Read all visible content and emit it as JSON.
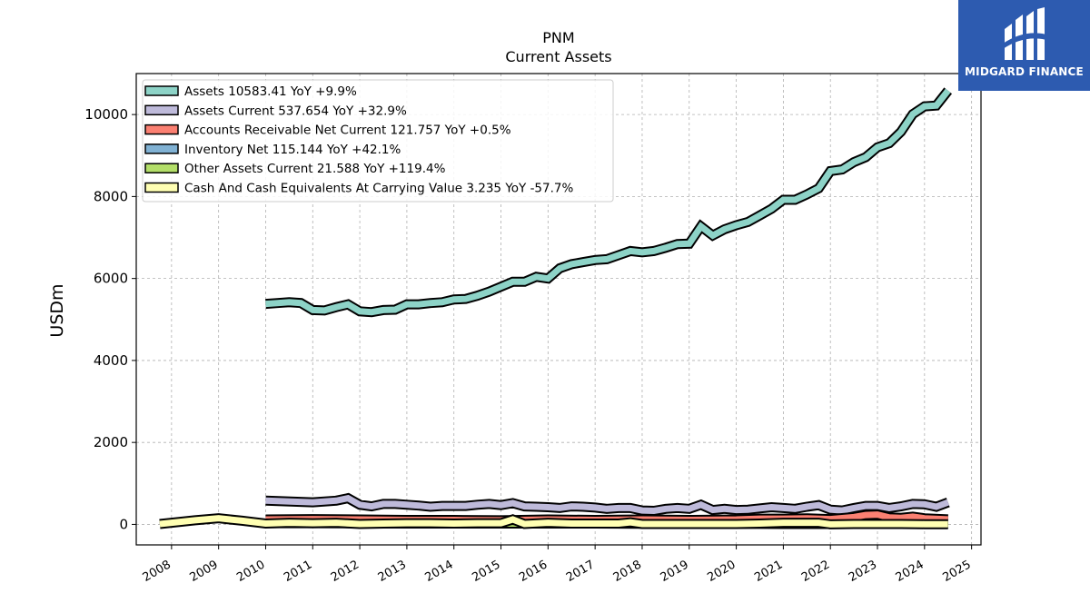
{
  "logo": {
    "text": "MIDGARD FINANCE",
    "icon": "midgard-logo-icon",
    "background": "#2d5bb0"
  },
  "chart_data": {
    "type": "area",
    "title": "PNM",
    "subtitle": "Current  Assets",
    "xlabel": "",
    "ylabel": "USDm",
    "xlim": [
      2007.25,
      2025.2
    ],
    "ylim": [
      -500,
      11000
    ],
    "x_ticks": [
      "2008",
      "2009",
      "2010",
      "2011",
      "2012",
      "2013",
      "2014",
      "2015",
      "2016",
      "2017",
      "2018",
      "2019",
      "2020",
      "2021",
      "2022",
      "2023",
      "2024",
      "2025"
    ],
    "y_ticks": [
      0,
      2000,
      4000,
      6000,
      8000,
      10000
    ],
    "grid": true,
    "legend_position": "top-left",
    "series": [
      {
        "name": "Assets  10583.41 YoY +9.9%",
        "color": "#8dd3c7",
        "x": [
          2010.0,
          2010.25,
          2010.5,
          2010.75,
          2011.0,
          2011.25,
          2011.5,
          2011.75,
          2012.0,
          2012.25,
          2012.5,
          2012.75,
          2013.0,
          2013.25,
          2013.5,
          2013.75,
          2014.0,
          2014.25,
          2014.5,
          2014.75,
          2015.0,
          2015.25,
          2015.5,
          2015.75,
          2016.0,
          2016.25,
          2016.5,
          2016.75,
          2017.0,
          2017.25,
          2017.5,
          2017.75,
          2018.0,
          2018.25,
          2018.5,
          2018.75,
          2019.0,
          2019.25,
          2019.5,
          2019.75,
          2020.0,
          2020.25,
          2020.5,
          2020.75,
          2021.0,
          2021.25,
          2021.5,
          2021.75,
          2022.0,
          2022.25,
          2022.5,
          2022.75,
          2023.0,
          2023.25,
          2023.5,
          2023.75,
          2024.0,
          2024.25,
          2024.5
        ],
        "values": [
          5380,
          5400,
          5420,
          5400,
          5230,
          5220,
          5300,
          5370,
          5200,
          5180,
          5230,
          5240,
          5370,
          5370,
          5400,
          5420,
          5490,
          5500,
          5580,
          5680,
          5800,
          5920,
          5920,
          6040,
          6000,
          6250,
          6350,
          6400,
          6450,
          6470,
          6570,
          6670,
          6640,
          6670,
          6750,
          6840,
          6850,
          7270,
          7050,
          7200,
          7300,
          7380,
          7540,
          7700,
          7920,
          7920,
          8050,
          8200,
          8620,
          8660,
          8840,
          8960,
          9200,
          9300,
          9580,
          10010,
          10200,
          10220,
          10583
        ]
      },
      {
        "name": "Assets Current  537.654 YoY +32.9%",
        "color": "#bebada",
        "x": [
          2010.0,
          2011.0,
          2011.5,
          2011.75,
          2012.0,
          2012.25,
          2012.5,
          2012.75,
          2013.0,
          2013.25,
          2013.5,
          2013.75,
          2014.0,
          2014.25,
          2014.5,
          2014.75,
          2015.0,
          2015.25,
          2015.5,
          2015.75,
          2016.0,
          2016.25,
          2016.5,
          2016.75,
          2017.0,
          2017.25,
          2017.5,
          2017.75,
          2018.0,
          2018.25,
          2018.5,
          2018.75,
          2019.0,
          2019.25,
          2019.5,
          2019.75,
          2020.0,
          2020.25,
          2020.5,
          2020.75,
          2021.0,
          2021.25,
          2021.5,
          2021.75,
          2022.0,
          2022.25,
          2022.5,
          2022.75,
          2023.0,
          2023.25,
          2023.5,
          2023.75,
          2024.0,
          2024.25,
          2024.5
        ],
        "values": [
          580,
          540,
          580,
          640,
          480,
          440,
          500,
          500,
          480,
          460,
          430,
          450,
          450,
          450,
          480,
          500,
          470,
          520,
          440,
          430,
          420,
          400,
          440,
          430,
          410,
          380,
          400,
          400,
          340,
          330,
          380,
          400,
          380,
          480,
          350,
          380,
          350,
          360,
          390,
          420,
          400,
          380,
          430,
          470,
          360,
          340,
          400,
          450,
          450,
          400,
          440,
          500,
          490,
          430,
          537
        ]
      },
      {
        "name": "Accounts Receivable Net Current  121.757 YoY +0.5%",
        "color": "#fb8072",
        "x": [
          2010.0,
          2011.0,
          2012.0,
          2013.0,
          2014.0,
          2015.0,
          2016.0,
          2017.0,
          2018.0,
          2019.0,
          2020.0,
          2020.5,
          2021.0,
          2021.5,
          2022.0,
          2022.5,
          2022.75,
          2023.0,
          2023.25,
          2023.5,
          2023.75,
          2024.0,
          2024.5
        ],
        "values": [
          120,
          130,
          120,
          110,
          110,
          100,
          120,
          110,
          120,
          110,
          120,
          140,
          140,
          150,
          130,
          180,
          230,
          240,
          170,
          160,
          190,
          150,
          122
        ]
      },
      {
        "name": "Inventory Net  115.144 YoY +42.1%",
        "color": "#80b1d3",
        "x": [
          2010.0,
          2011.0,
          2012.0,
          2013.0,
          2014.0,
          2015.0,
          2016.0,
          2017.0,
          2018.0,
          2019.0,
          2020.0,
          2021.0,
          2022.0,
          2023.0,
          2024.0,
          2024.5
        ],
        "values": [
          90,
          92,
          95,
          95,
          90,
          90,
          85,
          80,
          80,
          80,
          80,
          80,
          80,
          85,
          90,
          115
        ]
      },
      {
        "name": "Other Assets Current  21.588 YoY +119.4%",
        "color": "#b3de69",
        "x": [
          2010.0,
          2011.0,
          2012.0,
          2013.0,
          2014.0,
          2015.0,
          2016.0,
          2017.0,
          2018.0,
          2019.0,
          2020.0,
          2021.0,
          2022.0,
          2023.0,
          2024.0,
          2024.5
        ],
        "values": [
          30,
          30,
          25,
          20,
          20,
          20,
          20,
          20,
          15,
          15,
          15,
          10,
          10,
          10,
          10,
          22
        ]
      },
      {
        "name": "Cash And Cash Equivalents At Carrying Value  3.235 YoY -57.7%",
        "color": "#ffffb3",
        "x": [
          2007.75,
          2008.5,
          2009.0,
          2009.5,
          2010.0,
          2010.5,
          2011.0,
          2011.5,
          2012.0,
          2012.5,
          2013.0,
          2013.5,
          2014.0,
          2014.5,
          2015.0,
          2015.25,
          2015.5,
          2016.0,
          2016.5,
          2017.0,
          2017.5,
          2017.75,
          2018.0,
          2018.5,
          2019.0,
          2019.5,
          2020.0,
          2020.5,
          2021.0,
          2021.5,
          2021.75,
          2022.0,
          2022.5,
          2023.0,
          2023.5,
          2024.0,
          2024.5
        ],
        "values": [
          10,
          100,
          150,
          90,
          20,
          40,
          30,
          40,
          10,
          20,
          30,
          30,
          20,
          30,
          30,
          120,
          10,
          40,
          20,
          20,
          20,
          50,
          10,
          10,
          10,
          10,
          10,
          20,
          40,
          40,
          40,
          0,
          10,
          10,
          10,
          5,
          3
        ]
      }
    ]
  }
}
